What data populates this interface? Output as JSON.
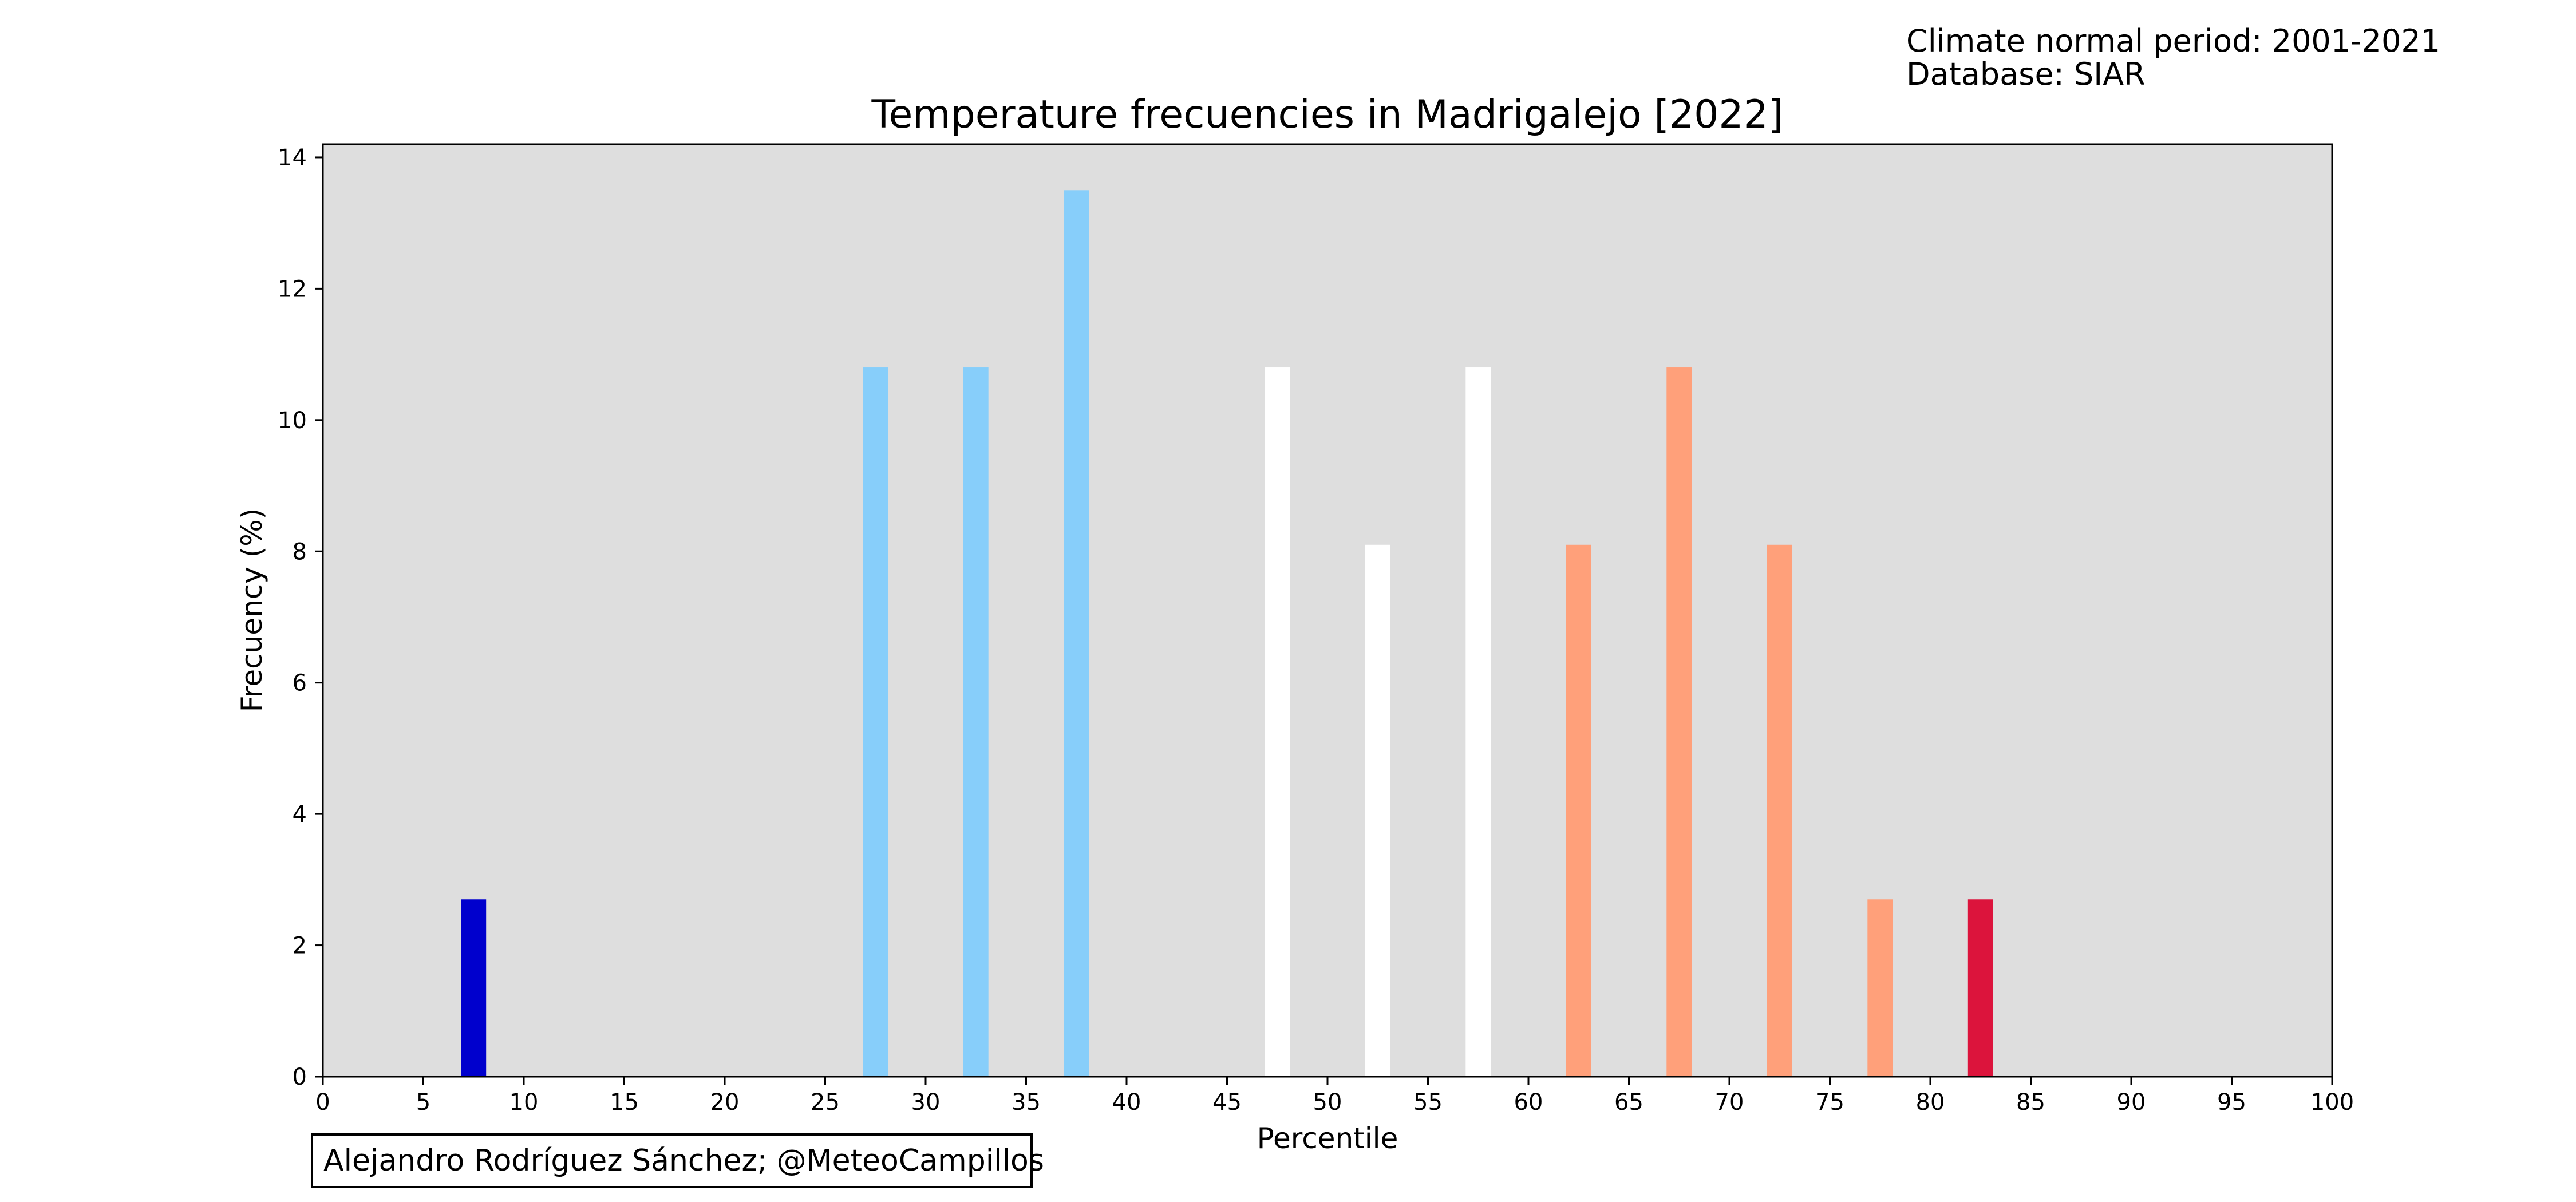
{
  "header": {
    "line1": "Climate normal period: 2001-2021",
    "line2": "Database: SIAR"
  },
  "credit": "Alejandro Rodríguez Sánchez; @MeteoCampillos",
  "chart_data": {
    "type": "bar",
    "title": "Temperature frecuencies in Madrigalejo [2022]",
    "xlabel": "Percentile",
    "ylabel": "Frecuency (%)",
    "xlim": [
      0,
      100
    ],
    "ylim": [
      0,
      14.2
    ],
    "xticks": [
      0,
      5,
      10,
      15,
      20,
      25,
      30,
      35,
      40,
      45,
      50,
      55,
      60,
      65,
      70,
      75,
      80,
      85,
      90,
      95,
      100
    ],
    "yticks": [
      0,
      2,
      4,
      6,
      8,
      10,
      12,
      14
    ],
    "grid": false,
    "plot_background": "#dedede",
    "bar_width": 1.25,
    "bars": [
      {
        "x": 7.5,
        "value": 2.7,
        "color": "#0000cd"
      },
      {
        "x": 27.5,
        "value": 10.8,
        "color": "#87cefa"
      },
      {
        "x": 32.5,
        "value": 10.8,
        "color": "#87cefa"
      },
      {
        "x": 37.5,
        "value": 13.5,
        "color": "#87cefa"
      },
      {
        "x": 47.5,
        "value": 10.8,
        "color": "#ffffff"
      },
      {
        "x": 52.5,
        "value": 8.1,
        "color": "#ffffff"
      },
      {
        "x": 57.5,
        "value": 10.8,
        "color": "#ffffff"
      },
      {
        "x": 62.5,
        "value": 8.1,
        "color": "#ffa07a"
      },
      {
        "x": 67.5,
        "value": 10.8,
        "color": "#ffa07a"
      },
      {
        "x": 72.5,
        "value": 8.1,
        "color": "#ffa07a"
      },
      {
        "x": 77.5,
        "value": 2.7,
        "color": "#ffa07a"
      },
      {
        "x": 82.5,
        "value": 2.7,
        "color": "#dc143c"
      }
    ]
  }
}
